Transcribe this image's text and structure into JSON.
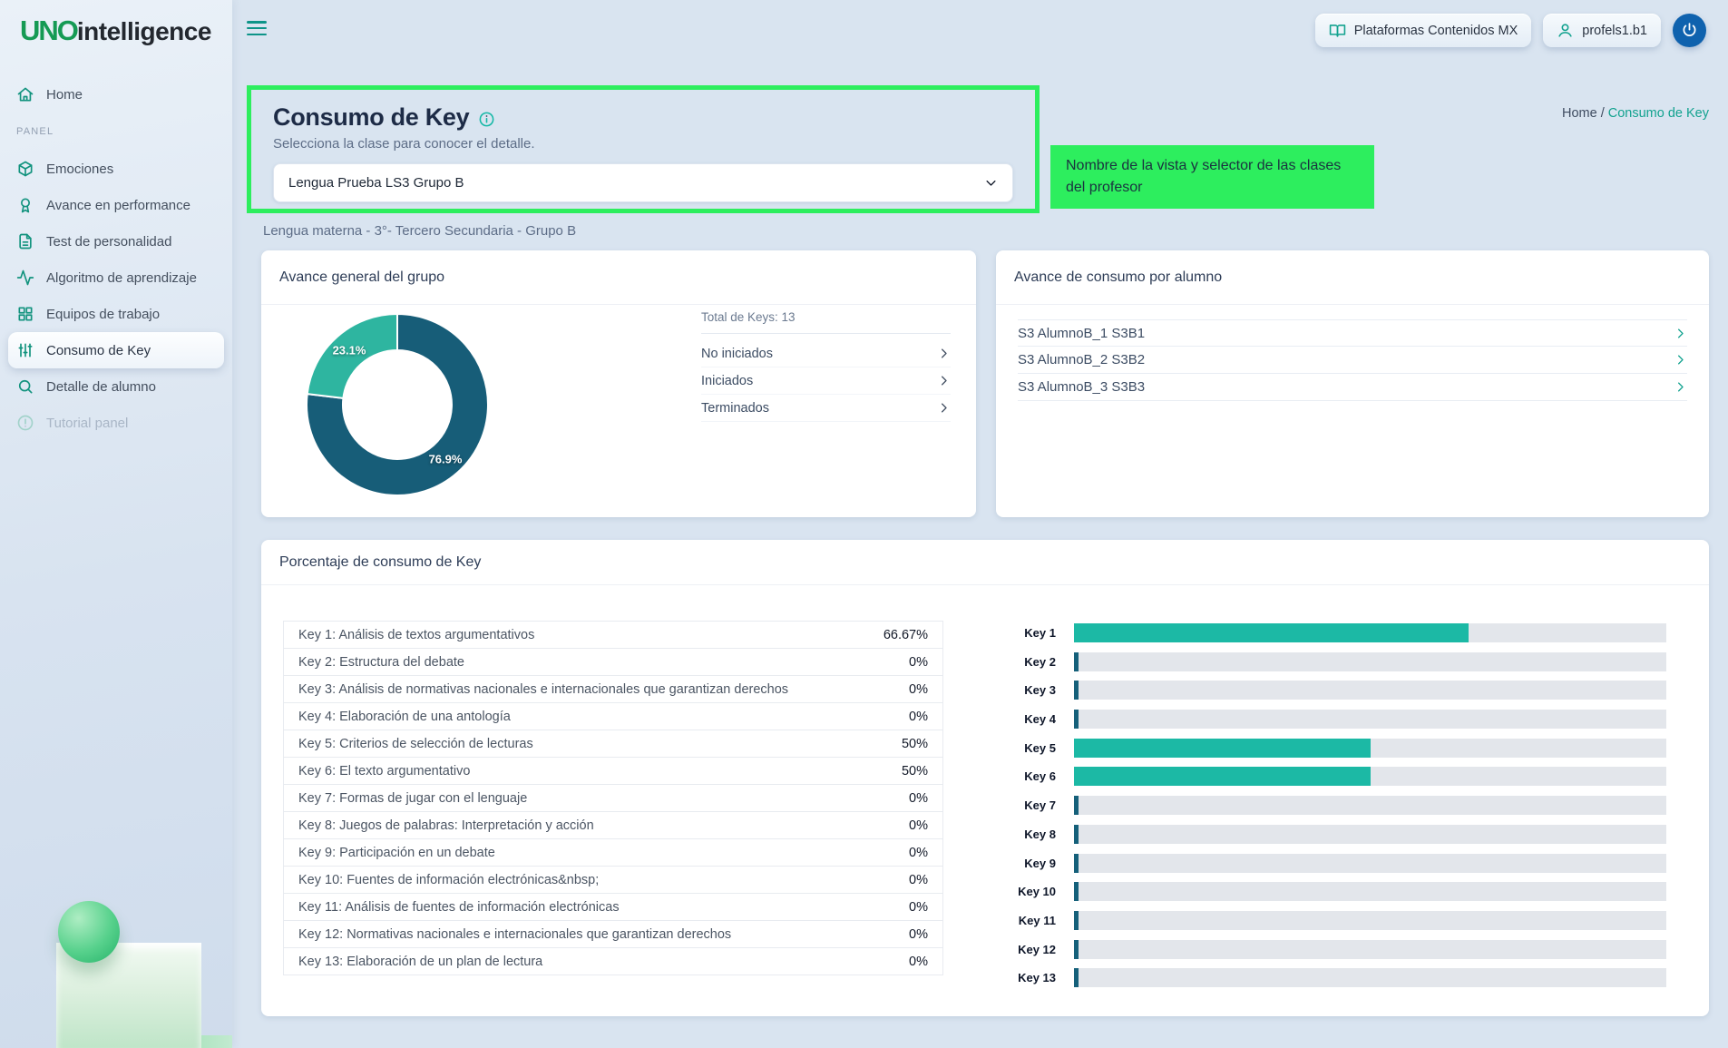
{
  "brand": {
    "logo_primary": "UNO",
    "logo_secondary": "intelligence"
  },
  "header": {
    "platform_button": {
      "label": "Plataformas Contenidos MX",
      "icon": "book-open-icon"
    },
    "user_button": {
      "label": "profels1.b1",
      "icon": "user-icon"
    },
    "power_button": {
      "icon": "power-icon"
    }
  },
  "sidebar": {
    "items": [
      {
        "label": "Home",
        "icon": "home",
        "type": "item"
      },
      {
        "label": "PANEL",
        "type": "section"
      },
      {
        "label": "Emociones",
        "icon": "cube",
        "type": "item"
      },
      {
        "label": "Avance en performance",
        "icon": "medal",
        "type": "item"
      },
      {
        "label": "Test de personalidad",
        "icon": "document",
        "type": "item"
      },
      {
        "label": "Algoritmo de aprendizaje",
        "icon": "activity",
        "type": "item"
      },
      {
        "label": "Equipos de trabajo",
        "icon": "grid",
        "type": "item"
      },
      {
        "label": "Consumo de Key",
        "icon": "sliders",
        "type": "item",
        "active": true
      },
      {
        "label": "Detalle de alumno",
        "icon": "search",
        "type": "item"
      },
      {
        "label": "Tutorial panel",
        "icon": "alert",
        "type": "item",
        "disabled": true
      }
    ]
  },
  "page": {
    "title": "Consumo de Key",
    "subtitle": "Selecciona la clase para conocer el detalle.",
    "class_selector": {
      "value": "Lengua Prueba LS3 Grupo B"
    },
    "annotation": "Nombre de la vista y selector de las clases del profesor",
    "breadcrumb": {
      "home": "Home",
      "separator": " / ",
      "current": "Consumo de Key"
    },
    "class_info": "Lengua materna - 3°- Tercero Secundaria - Grupo B"
  },
  "group_card": {
    "title": "Avance general del grupo",
    "total_label": "Total de Keys: 13",
    "statuses": [
      "No iniciados",
      "Iniciados",
      "Terminados"
    ]
  },
  "students_card": {
    "title": "Avance de consumo por alumno",
    "students": [
      "S3 AlumnoB_1 S3B1",
      "S3 AlumnoB_2 S3B2",
      "S3 AlumnoB_3 S3B3"
    ]
  },
  "keys_card": {
    "title": "Porcentaje de consumo de Key",
    "rows": [
      {
        "label": "Key 1: Análisis de textos argumentativos",
        "pct": "66.67%"
      },
      {
        "label": "Key 2: Estructura del debate",
        "pct": "0%"
      },
      {
        "label": "Key 3: Análisis de normativas nacionales e internacionales que garantizan derechos",
        "pct": "0%"
      },
      {
        "label": "Key 4: Elaboración de una antología",
        "pct": "0%"
      },
      {
        "label": "Key 5: Criterios de selección de lecturas",
        "pct": "50%"
      },
      {
        "label": "Key 6: El texto argumentativo",
        "pct": "50%"
      },
      {
        "label": "Key 7: Formas de jugar con el lenguaje",
        "pct": "0%"
      },
      {
        "label": "Key 8: Juegos de palabras: Interpretación y acción",
        "pct": "0%"
      },
      {
        "label": "Key 9: Participación en un debate",
        "pct": "0%"
      },
      {
        "label": "Key 10: Fuentes de información electrónicas&nbsp;",
        "pct": "0%"
      },
      {
        "label": "Key 11: Análisis de fuentes de información electrónicas",
        "pct": "0%"
      },
      {
        "label": "Key 12: Normativas nacionales e internacionales que garantizan derechos",
        "pct": "0%"
      },
      {
        "label": "Key 13: Elaboración de un plan de lectura",
        "pct": "0%"
      }
    ]
  },
  "chart_data": [
    {
      "type": "pie",
      "variant": "donut",
      "title": "Avance general del grupo",
      "start_angle_deg": 0,
      "direction": "clockwise",
      "inner_radius_ratio": 0.6,
      "slices": [
        {
          "label": "76.9%",
          "value": 76.9,
          "color": "#175d78"
        },
        {
          "label": "23.1%",
          "value": 23.1,
          "color": "#2eb5a0"
        }
      ],
      "legend": false
    },
    {
      "type": "bar",
      "orientation": "horizontal",
      "title": "Porcentaje de consumo de Key",
      "categories": [
        "Key 1",
        "Key 2",
        "Key 3",
        "Key 4",
        "Key 5",
        "Key 6",
        "Key 7",
        "Key 8",
        "Key 9",
        "Key 10",
        "Key 11",
        "Key 12",
        "Key 13"
      ],
      "values": [
        66.67,
        0,
        0,
        0,
        50,
        50,
        0,
        0,
        0,
        0,
        0,
        0,
        0
      ],
      "value_labels": [
        "66.67%",
        "0%",
        "0%",
        "0%",
        "50%",
        "50%",
        "0%",
        "0%",
        "0%",
        "0%",
        "0%",
        "0%",
        "0%"
      ],
      "xlim": [
        0,
        100
      ],
      "grid": false,
      "bar_color": "#1cb9a5",
      "zero_bar_color": "#15607a",
      "track_color": "#e3e6eb"
    }
  ],
  "colors": {
    "accent_teal": "#1cb9a5",
    "donut_dark": "#175d78",
    "donut_teal": "#2eb5a0",
    "highlight_green": "#2dee5e",
    "zero_bar": "#15607a",
    "track_gray": "#e3e6eb",
    "page_bg": "#d9e4f0"
  }
}
